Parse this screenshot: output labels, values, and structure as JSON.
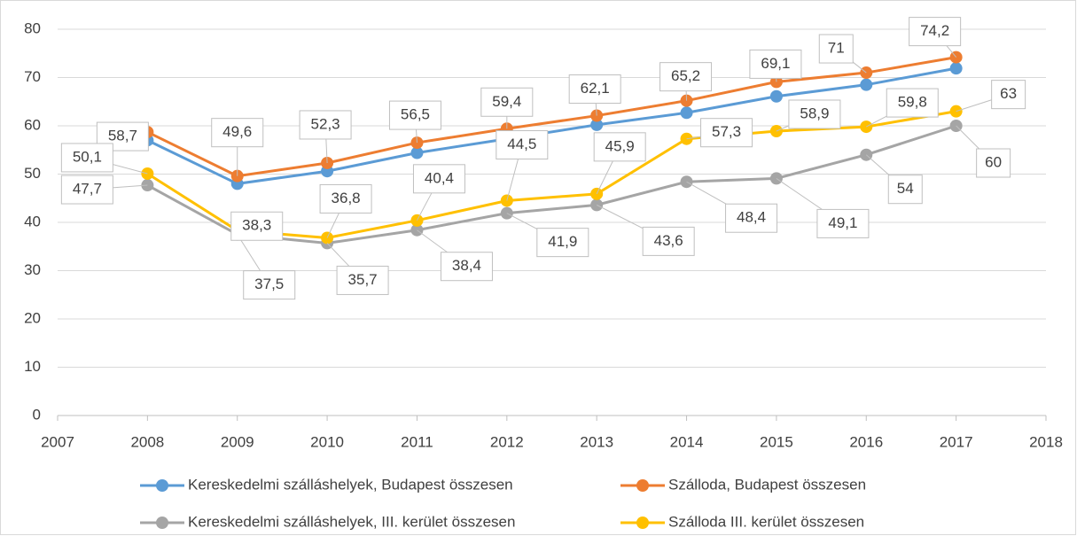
{
  "chart_data": {
    "type": "line",
    "x": [
      2008,
      2009,
      2010,
      2011,
      2012,
      2013,
      2014,
      2015,
      2016,
      2017
    ],
    "xlim": [
      2007,
      2018
    ],
    "xticks": [
      2007,
      2008,
      2009,
      2010,
      2011,
      2012,
      2013,
      2014,
      2015,
      2016,
      2017,
      2018
    ],
    "ylim": [
      0,
      80
    ],
    "yticks": [
      0,
      10,
      20,
      30,
      40,
      50,
      60,
      70,
      80
    ],
    "grid": true,
    "legend": "bottom",
    "series": [
      {
        "name": "Kereskedelmi szálláshelyek, Budapest összesen",
        "color": "#5b9bd5",
        "values": [
          57,
          48,
          50.6,
          54.4,
          57.3,
          60.2,
          62.7,
          66.1,
          68.5,
          71.9
        ]
      },
      {
        "name": "Szálloda, Budapest összesen",
        "color": "#ed7d31",
        "values": [
          58.7,
          49.6,
          52.3,
          56.5,
          59.4,
          62.1,
          65.2,
          69.1,
          71,
          74.2
        ],
        "value_labels": [
          "58,7",
          "49,6",
          "52,3",
          "56,5",
          "59,4",
          "62,1",
          "65,2",
          "69,1",
          "71",
          "74,2"
        ]
      },
      {
        "name": "Kereskedelmi szálláshelyek, III. kerület összesen",
        "color": "#a5a5a5",
        "values": [
          47.7,
          37.5,
          35.7,
          38.4,
          41.9,
          43.6,
          48.4,
          49.1,
          54,
          60
        ],
        "value_labels": [
          "47,7",
          "37,5",
          "35,7",
          "38,4",
          "41,9",
          "43,6",
          "48,4",
          "49,1",
          "54",
          "60"
        ]
      },
      {
        "name": "Szálloda III. kerület összesen",
        "color": "#ffc000",
        "values": [
          50.1,
          38.3,
          36.8,
          40.4,
          44.5,
          45.9,
          57.3,
          58.9,
          59.8,
          63
        ],
        "value_labels": [
          "50,1",
          "38,3",
          "36,8",
          "40,4",
          "44,5",
          "45,9",
          "57,3",
          "58,9",
          "59,8",
          "63"
        ]
      }
    ]
  }
}
